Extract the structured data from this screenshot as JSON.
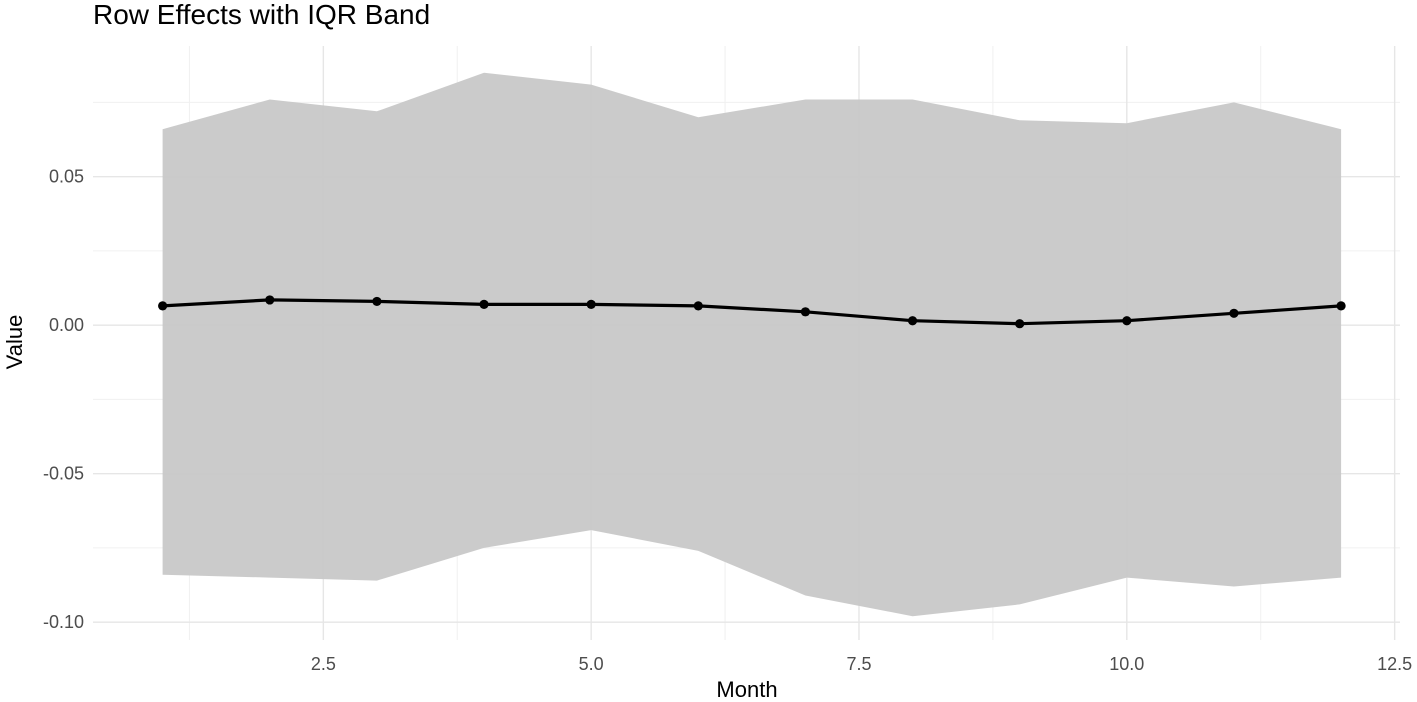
{
  "chart_data": {
    "type": "line",
    "title": "Row Effects with IQR Band",
    "xlabel": "Month",
    "ylabel": "Value",
    "xlim": [
      0.35,
      12.55
    ],
    "ylim": [
      -0.106,
      0.094
    ],
    "x_ticks": [
      2.5,
      5.0,
      7.5,
      10.0,
      12.5
    ],
    "x_tick_labels": [
      "2.5",
      "5.0",
      "7.5",
      "10.0",
      "12.5"
    ],
    "x_minor_ticks": [
      1.25,
      3.75,
      6.25,
      8.75,
      11.25
    ],
    "y_ticks": [
      -0.1,
      -0.05,
      0.0,
      0.05
    ],
    "y_tick_labels": [
      "-0.10",
      "-0.05",
      "0.00",
      "0.05"
    ],
    "y_minor_ticks": [
      -0.075,
      -0.025,
      0.025,
      0.075
    ],
    "grid": true,
    "legend": "none",
    "colors": {
      "line": "#000000",
      "band": "#c8c8c8"
    },
    "x": [
      1,
      2,
      3,
      4,
      5,
      6,
      7,
      8,
      9,
      10,
      11,
      12
    ],
    "series": [
      {
        "values": [
          0.0065,
          0.0085,
          0.008,
          0.007,
          0.007,
          0.0065,
          0.0045,
          0.0015,
          0.0005,
          0.0015,
          0.004,
          0.0065
        ]
      }
    ],
    "band": {
      "upper": [
        0.066,
        0.076,
        0.072,
        0.085,
        0.081,
        0.07,
        0.076,
        0.076,
        0.069,
        0.068,
        0.075,
        0.066
      ],
      "lower": [
        -0.084,
        -0.085,
        -0.086,
        -0.075,
        -0.069,
        -0.076,
        -0.091,
        -0.098,
        -0.094,
        -0.085,
        -0.088,
        -0.085
      ]
    }
  }
}
